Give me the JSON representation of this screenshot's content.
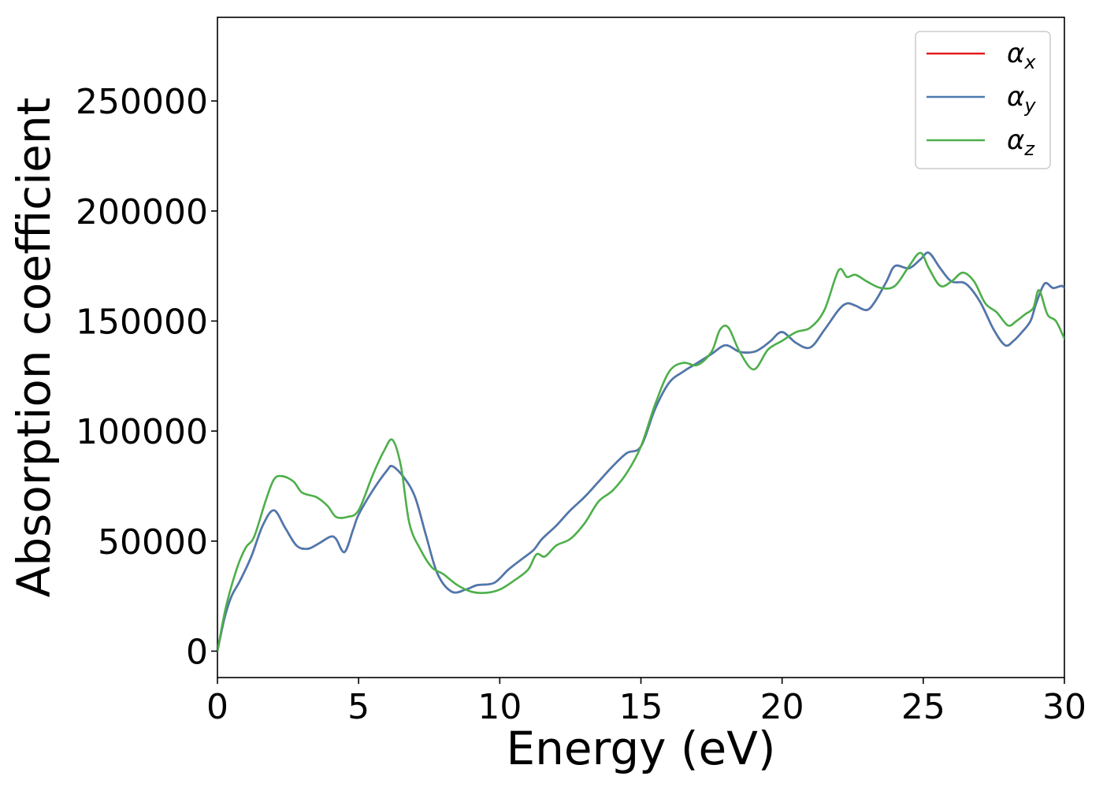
{
  "chart_data": {
    "type": "line",
    "title": "",
    "xlabel": "Energy (eV)",
    "ylabel": "Absorption coefficient",
    "xlim": [
      0,
      30
    ],
    "ylim": [
      -12000,
      288000
    ],
    "xticks": [
      0,
      5,
      10,
      15,
      20,
      25,
      30
    ],
    "yticks": [
      0,
      50000,
      100000,
      150000,
      200000,
      250000
    ],
    "grid": false,
    "legend_position": "top-right",
    "series": [
      {
        "name": "α",
        "subscript": "x",
        "color": "#e41a1c",
        "x": [
          0,
          0.25,
          0.5,
          0.8,
          1.2,
          1.6,
          2.0,
          2.4,
          2.8,
          3.2,
          3.6,
          4.0,
          4.2,
          4.5,
          4.8,
          5.0,
          5.5,
          6.0,
          6.2,
          6.6,
          7.0,
          7.4,
          7.8,
          8.3,
          8.8,
          9.2,
          9.8,
          10.3,
          10.8,
          11.2,
          11.5,
          12.0,
          12.5,
          13.0,
          13.5,
          14.0,
          14.5,
          15.0,
          15.5,
          16.0,
          16.5,
          17.0,
          17.5,
          18.0,
          18.5,
          19.0,
          19.3,
          19.6,
          20.0,
          20.5,
          21.0,
          21.5,
          22.0,
          22.3,
          22.6,
          23.0,
          23.3,
          23.7,
          24.0,
          24.5,
          24.9,
          25.2,
          25.6,
          26.0,
          26.5,
          27.0,
          27.5,
          27.9,
          28.2,
          28.5,
          28.8,
          29.0,
          29.3,
          29.6,
          29.9,
          30.0
        ],
        "y": [
          0,
          15000,
          25000,
          32000,
          43000,
          57000,
          64000,
          56000,
          48000,
          46500,
          49000,
          52000,
          51000,
          45000,
          55000,
          62000,
          73000,
          82000,
          84000,
          79000,
          70000,
          52000,
          35000,
          27000,
          28000,
          30000,
          31000,
          37000,
          42000,
          46000,
          51000,
          57000,
          64000,
          70000,
          77000,
          84000,
          90000,
          93000,
          110000,
          122000,
          127000,
          131000,
          135000,
          139000,
          136000,
          136000,
          138000,
          141000,
          145000,
          140000,
          138000,
          146000,
          155000,
          158000,
          157000,
          155000,
          159000,
          168000,
          175000,
          174000,
          178000,
          181000,
          174000,
          168000,
          167000,
          159000,
          146000,
          139000,
          141000,
          145000,
          150000,
          158000,
          167000,
          165000,
          166000,
          165000
        ]
      },
      {
        "name": "α",
        "subscript": "y",
        "color": "#4a7ab0",
        "x": [
          0,
          0.25,
          0.5,
          0.8,
          1.2,
          1.6,
          2.0,
          2.4,
          2.8,
          3.2,
          3.6,
          4.0,
          4.2,
          4.5,
          4.8,
          5.0,
          5.5,
          6.0,
          6.2,
          6.6,
          7.0,
          7.4,
          7.8,
          8.3,
          8.8,
          9.2,
          9.8,
          10.3,
          10.8,
          11.2,
          11.5,
          12.0,
          12.5,
          13.0,
          13.5,
          14.0,
          14.5,
          15.0,
          15.5,
          16.0,
          16.5,
          17.0,
          17.5,
          18.0,
          18.5,
          19.0,
          19.3,
          19.6,
          20.0,
          20.5,
          21.0,
          21.5,
          22.0,
          22.3,
          22.6,
          23.0,
          23.3,
          23.7,
          24.0,
          24.5,
          24.9,
          25.2,
          25.6,
          26.0,
          26.5,
          27.0,
          27.5,
          27.9,
          28.2,
          28.5,
          28.8,
          29.0,
          29.3,
          29.6,
          29.9,
          30.0
        ],
        "y": [
          0,
          15000,
          25000,
          32000,
          43000,
          57000,
          64000,
          56000,
          48000,
          46500,
          49000,
          52000,
          51000,
          45000,
          55000,
          62000,
          73000,
          82000,
          84000,
          79000,
          70000,
          52000,
          35000,
          27000,
          28000,
          30000,
          31000,
          37000,
          42000,
          46000,
          51000,
          57000,
          64000,
          70000,
          77000,
          84000,
          90000,
          93000,
          110000,
          122000,
          127000,
          131000,
          135000,
          139000,
          136000,
          136000,
          138000,
          141000,
          145000,
          140000,
          138000,
          146000,
          155000,
          158000,
          157000,
          155000,
          159000,
          168000,
          175000,
          174000,
          178000,
          181000,
          174000,
          168000,
          167000,
          159000,
          146000,
          139000,
          141000,
          145000,
          150000,
          158000,
          167000,
          165000,
          166000,
          165000
        ]
      },
      {
        "name": "α",
        "subscript": "z",
        "color": "#4daf4a",
        "x": [
          0,
          0.3,
          0.7,
          1.0,
          1.3,
          1.7,
          2.0,
          2.3,
          2.7,
          3.0,
          3.5,
          3.9,
          4.2,
          4.6,
          5.0,
          5.5,
          5.9,
          6.2,
          6.5,
          6.8,
          7.2,
          7.6,
          8.0,
          8.5,
          9.0,
          9.5,
          10.0,
          10.5,
          11.0,
          11.3,
          11.6,
          12.0,
          12.5,
          13.0,
          13.5,
          14.0,
          14.5,
          15.0,
          15.5,
          16.0,
          16.5,
          17.0,
          17.5,
          17.8,
          18.1,
          18.5,
          19.0,
          19.5,
          20.0,
          20.5,
          21.0,
          21.5,
          22.0,
          22.3,
          22.6,
          23.0,
          23.5,
          24.0,
          24.5,
          24.9,
          25.2,
          25.6,
          26.0,
          26.4,
          26.8,
          27.2,
          27.6,
          28.0,
          28.3,
          28.6,
          28.9,
          29.1,
          29.4,
          29.7,
          30.0
        ],
        "y": [
          0,
          20000,
          38000,
          47000,
          52000,
          68000,
          78000,
          79500,
          77000,
          72000,
          70000,
          66000,
          61000,
          61000,
          64000,
          80000,
          91000,
          96000,
          84000,
          58000,
          46000,
          38000,
          35000,
          30000,
          27000,
          26500,
          28000,
          32000,
          37000,
          44000,
          43000,
          48000,
          51000,
          58000,
          68000,
          73000,
          81000,
          93000,
          112000,
          127000,
          131000,
          130000,
          136000,
          146000,
          147000,
          136000,
          128000,
          137000,
          141000,
          145000,
          147000,
          155000,
          173000,
          170000,
          171000,
          168000,
          165000,
          166000,
          175000,
          181000,
          174000,
          166000,
          168000,
          172000,
          168000,
          158000,
          154000,
          148000,
          150000,
          153000,
          156000,
          164000,
          153000,
          150000,
          142000
        ]
      }
    ]
  }
}
